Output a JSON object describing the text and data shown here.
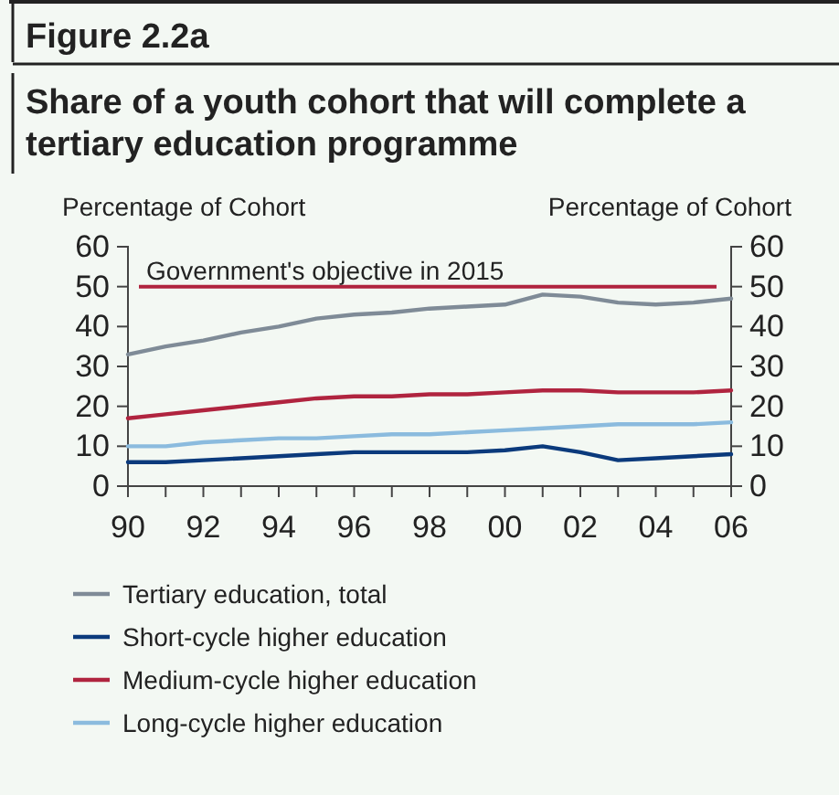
{
  "chart_data": {
    "type": "line",
    "title": "Figure 2.2a",
    "subtitle": "Share of a youth cohort that will complete a tertiary education programme",
    "ylabel": "Percentage of Cohort",
    "y2label": "Percentage of Cohort",
    "x": [
      1990,
      1991,
      1992,
      1993,
      1994,
      1995,
      1996,
      1997,
      1998,
      1999,
      2000,
      2001,
      2002,
      2003,
      2004,
      2005,
      2006
    ],
    "xlim": [
      1990,
      2006
    ],
    "xticks": [
      {
        "value": 1990,
        "label": "90"
      },
      {
        "value": 1991,
        "label": null
      },
      {
        "value": 1992,
        "label": "92"
      },
      {
        "value": 1993,
        "label": null
      },
      {
        "value": 1994,
        "label": "94"
      },
      {
        "value": 1995,
        "label": null
      },
      {
        "value": 1996,
        "label": "96"
      },
      {
        "value": 1997,
        "label": null
      },
      {
        "value": 1998,
        "label": "98"
      },
      {
        "value": 1999,
        "label": null
      },
      {
        "value": 2000,
        "label": "00"
      },
      {
        "value": 2001,
        "label": null
      },
      {
        "value": 2002,
        "label": "02"
      },
      {
        "value": 2003,
        "label": null
      },
      {
        "value": 2004,
        "label": "04"
      },
      {
        "value": 2005,
        "label": null
      },
      {
        "value": 2006,
        "label": "06"
      }
    ],
    "ylim": [
      0,
      60
    ],
    "yticks": [
      0,
      10,
      20,
      30,
      40,
      50,
      60
    ],
    "y2lim": [
      0,
      60
    ],
    "y2ticks": [
      0,
      10,
      20,
      30,
      40,
      50,
      60
    ],
    "series": [
      {
        "name": "Tertiary education, total",
        "color": "#7f8b97",
        "values": [
          33,
          35,
          36.5,
          38.5,
          40,
          42,
          43,
          43.5,
          44.5,
          45,
          45.5,
          48,
          47.5,
          46,
          45.5,
          46,
          47
        ]
      },
      {
        "name": "Short-cycle higher education",
        "color": "#0b3a7c",
        "values": [
          6,
          6,
          6.5,
          7,
          7.5,
          8,
          8.5,
          8.5,
          8.5,
          8.5,
          9,
          10,
          8.5,
          6.5,
          7,
          7.5,
          8
        ]
      },
      {
        "name": "Medium-cycle higher education",
        "color": "#b0243f",
        "values": [
          17,
          18,
          19,
          20,
          21,
          22,
          22.5,
          22.5,
          23,
          23,
          23.5,
          24,
          24,
          23.5,
          23.5,
          23.5,
          24
        ]
      },
      {
        "name": "Long-cycle higher education",
        "color": "#8bbbde",
        "values": [
          10,
          10,
          11,
          11.5,
          12,
          12,
          12.5,
          13,
          13,
          13.5,
          14,
          14.5,
          15,
          15.5,
          15.5,
          15.5,
          16
        ]
      }
    ],
    "ref_lines": [
      {
        "axis": "y",
        "value": 50,
        "label": "Government's objective in 2015",
        "color": "#b0243f"
      }
    ],
    "legend": "bottom",
    "grid": false
  }
}
